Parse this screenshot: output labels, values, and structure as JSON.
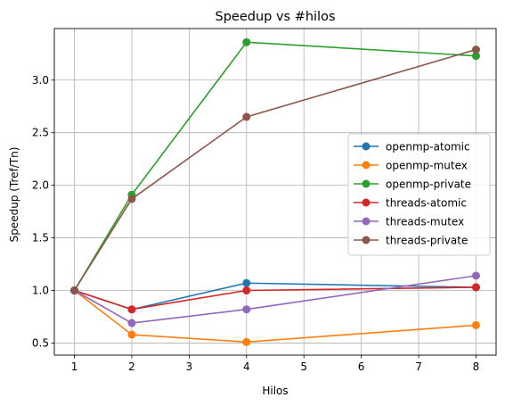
{
  "chart_data": {
    "type": "line",
    "title": "Speedup vs #hilos",
    "xlabel": "Hilos",
    "ylabel": "Speedup (Tref/Tn)",
    "x": [
      1,
      2,
      4,
      8
    ],
    "xlim": [
      0.65,
      8.35
    ],
    "ylim": [
      0.385,
      3.49
    ],
    "xticks": [
      1,
      2,
      3,
      4,
      5,
      6,
      7,
      8
    ],
    "yticks": [
      0.5,
      1.0,
      1.5,
      2.0,
      2.5,
      3.0
    ],
    "ytick_labels": [
      "0.5",
      "1.0",
      "1.5",
      "2.0",
      "2.5",
      "3.0"
    ],
    "grid": true,
    "legend_position": "center-right",
    "series": [
      {
        "name": "openmp-atomic",
        "color": "#1f77b4",
        "values": [
          1.0,
          0.82,
          1.07,
          1.03
        ]
      },
      {
        "name": "openmp-mutex",
        "color": "#ff7f0e",
        "values": [
          1.0,
          0.58,
          0.51,
          0.67
        ]
      },
      {
        "name": "openmp-private",
        "color": "#2ca02c",
        "values": [
          1.0,
          1.91,
          3.36,
          3.23
        ]
      },
      {
        "name": "threads-atomic",
        "color": "#d62728",
        "values": [
          1.0,
          0.82,
          1.0,
          1.03
        ]
      },
      {
        "name": "threads-mutex",
        "color": "#9467bd",
        "values": [
          1.0,
          0.69,
          0.82,
          1.14
        ]
      },
      {
        "name": "threads-private",
        "color": "#8c564b",
        "values": [
          1.0,
          1.87,
          2.65,
          3.29
        ]
      }
    ]
  }
}
